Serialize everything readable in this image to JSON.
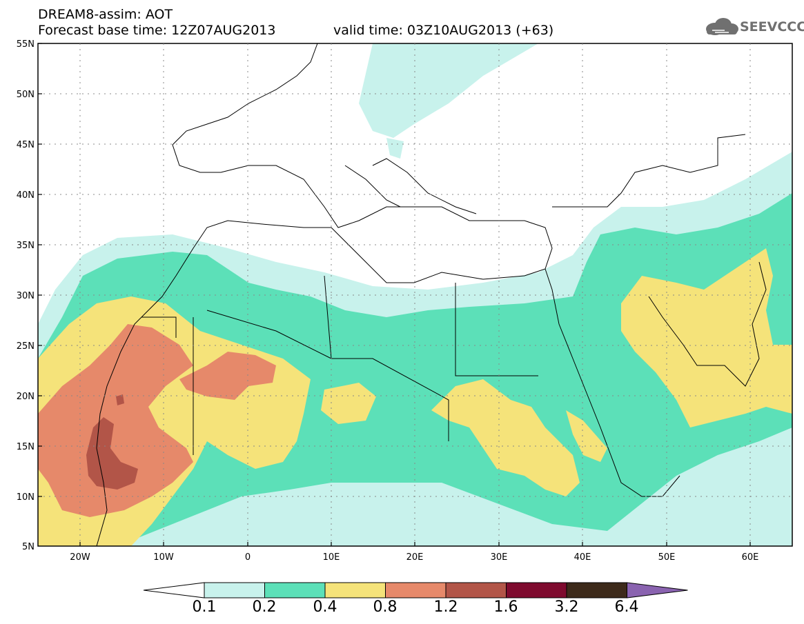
{
  "header": {
    "line1": "DREAM8-assim: AOT",
    "line2": "Forecast base time: 12Z07AUG2013",
    "line3": "valid time: 03Z10AUG2013 (+63)",
    "logo_text": "SEEVCCC",
    "logo_icon": "cloud-icon"
  },
  "map": {
    "projection": "cylindrical",
    "lon_range": [
      -25,
      65
    ],
    "lat_range": [
      5,
      55
    ],
    "lat_ticks": [
      "55N",
      "50N",
      "45N",
      "40N",
      "35N",
      "30N",
      "25N",
      "20N",
      "15N",
      "10N",
      "5N"
    ],
    "lon_ticks": [
      "20W",
      "10W",
      "0",
      "10E",
      "20E",
      "30E",
      "40E",
      "50E",
      "60E"
    ],
    "grid": "dotted"
  },
  "legend": {
    "labels": [
      "0.1",
      "0.2",
      "0.4",
      "0.8",
      "1.2",
      "1.6",
      "3.2",
      "6.4"
    ],
    "colors": [
      "#ffffff",
      "#c8f2ec",
      "#5ce0b8",
      "#f5e37a",
      "#e6896a",
      "#b25548",
      "#7e0a2e",
      "#3d2a1a",
      "#8a63b0"
    ]
  }
}
